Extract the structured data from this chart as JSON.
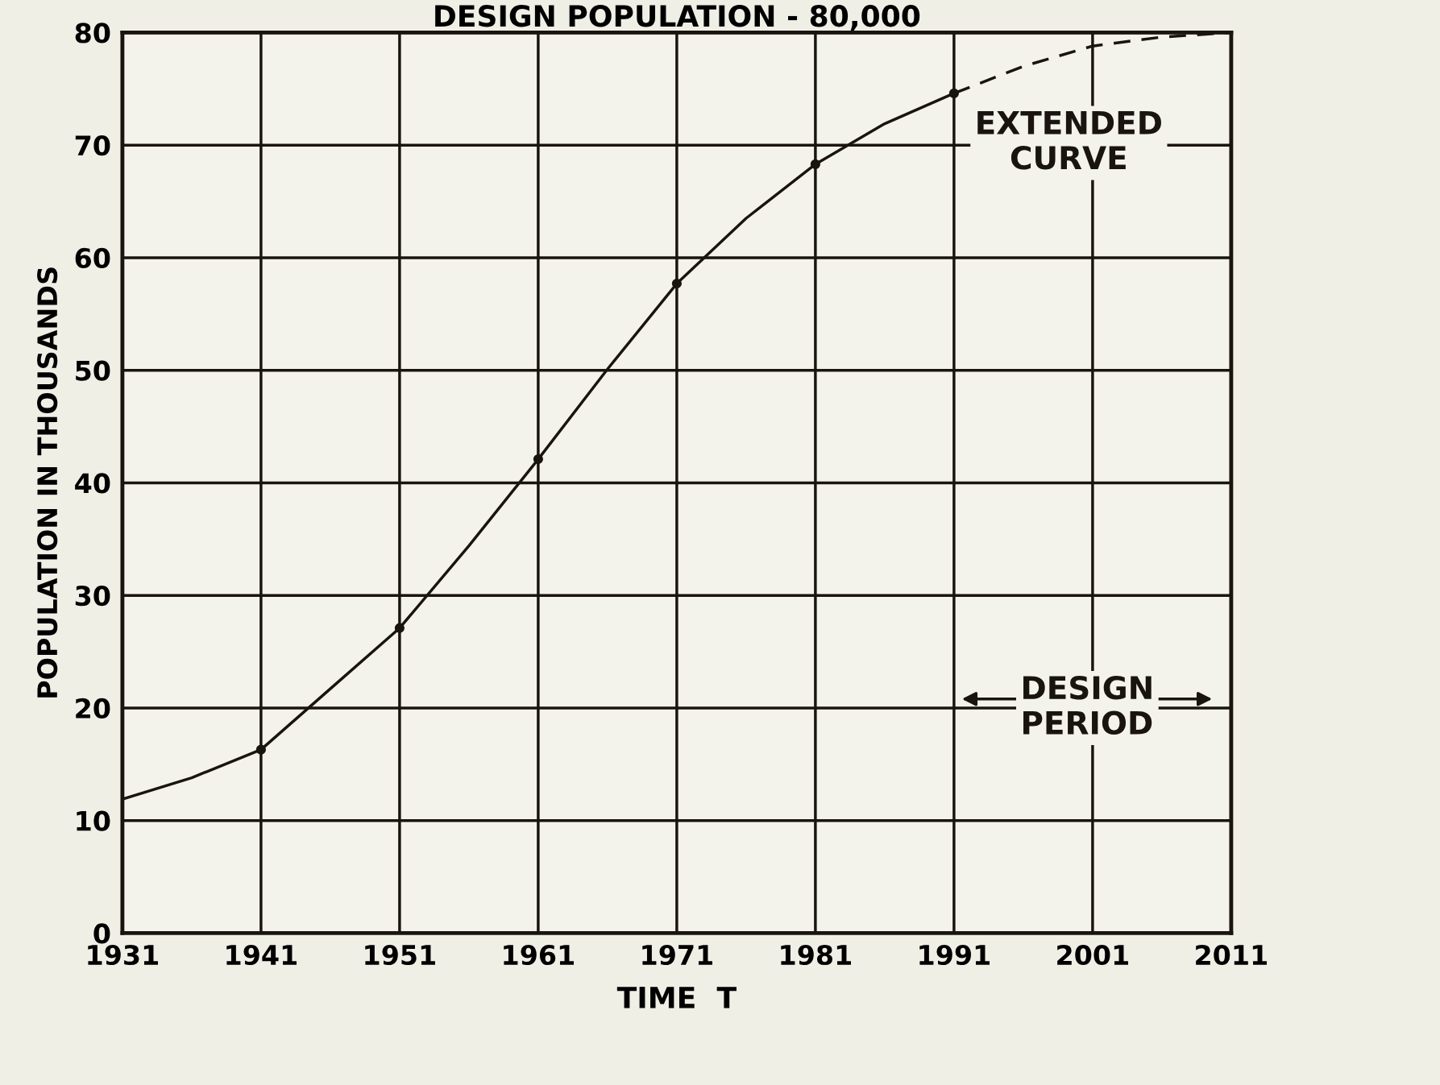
{
  "chart_data": {
    "type": "line",
    "title": "DESIGN POPULATION - 80,000",
    "xlabel": "TIME  T",
    "ylabel": "POPULATION IN THOUSANDS",
    "series": [
      {
        "color": "#1a1410",
        "line_style": "solid",
        "marker": "none",
        "x": [
          1931,
          1936,
          1941,
          1946,
          1951,
          1956,
          1961,
          1966,
          1971,
          1976,
          1981,
          1986,
          1991
        ],
        "values": [
          11.9,
          13.8,
          16.3,
          21.7,
          27.1,
          34.4,
          42.1,
          50.1,
          57.7,
          63.5,
          68.3,
          71.9,
          74.6
        ]
      },
      {
        "color": "#1a1410",
        "line_style": "dashed",
        "marker": "none",
        "x": [
          1991,
          1996,
          2001,
          2006,
          2011
        ],
        "values": [
          74.6,
          77,
          78.8,
          79.6,
          80
        ]
      },
      {
        "type": "scatter",
        "color": "#1a1410",
        "marker": "circle",
        "x": [
          1941,
          1951,
          1961,
          1971,
          1981,
          1991
        ],
        "values": [
          16.3,
          27.1,
          42.1,
          57.7,
          68.3,
          74.6
        ]
      }
    ],
    "xlim": [
      1931,
      2011
    ],
    "xticks": [
      1931,
      1941,
      1951,
      1961,
      1971,
      1981,
      1991,
      2001,
      2011
    ],
    "ylim": [
      0,
      80
    ],
    "yticks": [
      0,
      10,
      20,
      30,
      40,
      50,
      60,
      70,
      80
    ],
    "grid": true,
    "annotations": [
      {
        "text": "EXTENDED\nCURVE",
        "x": 1991,
        "y": 74.6
      },
      "DESIGN\nPERIOD"
    ]
  }
}
